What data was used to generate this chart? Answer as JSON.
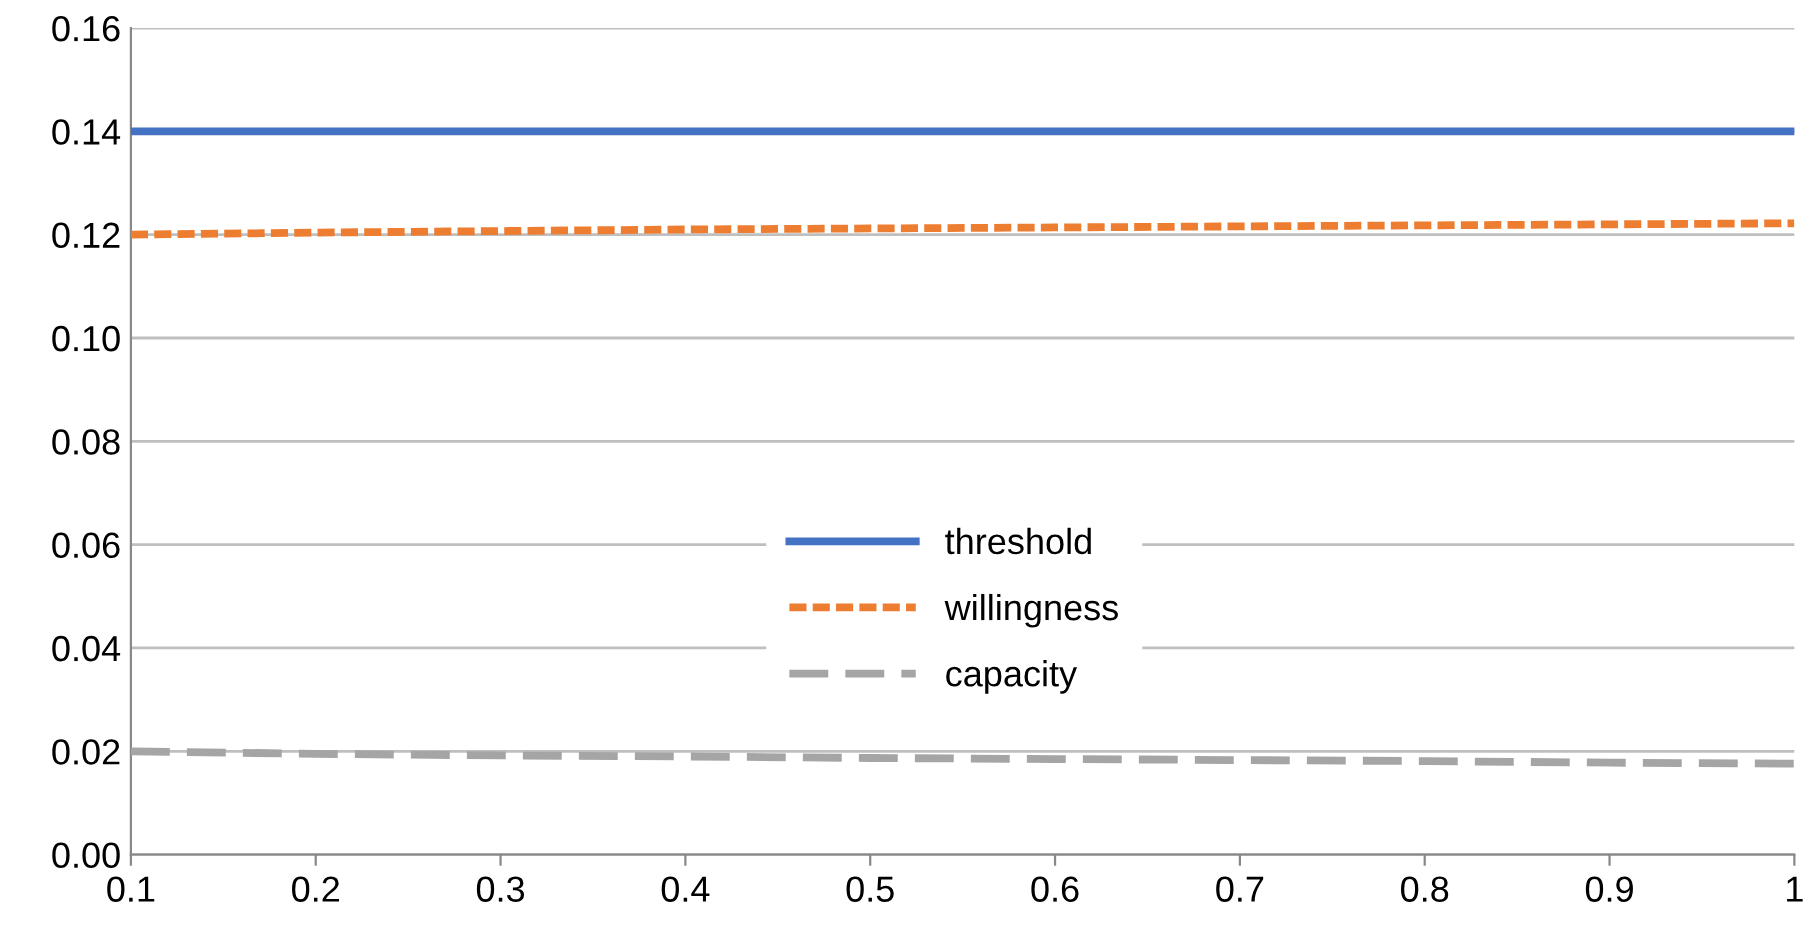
{
  "chart_data": {
    "type": "line",
    "x": [
      0.1,
      0.2,
      0.3,
      0.4,
      0.5,
      0.6,
      0.7,
      0.8,
      0.9,
      1
    ],
    "series": [
      {
        "name": "threshold",
        "color": "#4472c4",
        "line_style": "solid",
        "values": [
          0.14,
          0.14,
          0.14,
          0.14,
          0.14,
          0.14,
          0.14,
          0.14,
          0.14,
          0.14
        ]
      },
      {
        "name": "willingness",
        "color": "#ed7d31",
        "line_style": "dotted",
        "values": [
          0.12,
          0.1204,
          0.1207,
          0.121,
          0.1212,
          0.1214,
          0.1216,
          0.1218,
          0.122,
          0.1222
        ]
      },
      {
        "name": "capacity",
        "color": "#a5a5a5",
        "line_style": "dashed",
        "values": [
          0.02,
          0.0195,
          0.0192,
          0.019,
          0.0187,
          0.0185,
          0.0183,
          0.0181,
          0.0178,
          0.0176
        ]
      }
    ],
    "xlim": [
      0.1,
      1
    ],
    "xticks": [
      0.1,
      0.2,
      0.3,
      0.4,
      0.5,
      0.6,
      0.7,
      0.8,
      0.9,
      1
    ],
    "ylim": [
      0,
      0.16
    ],
    "yticks": [
      {
        "value": 0,
        "label": "0.00"
      },
      {
        "value": 0.02,
        "label": "0.02"
      },
      {
        "value": 0.04,
        "label": "0.04"
      },
      {
        "value": 0.06,
        "label": "0.06"
      },
      {
        "value": 0.08,
        "label": "0.08"
      },
      {
        "value": 0.1,
        "label": "0.10"
      },
      {
        "value": 0.12,
        "label": "0.12"
      },
      {
        "value": 0.14,
        "label": "0.14"
      },
      {
        "value": 0.16,
        "label": "0.16"
      }
    ],
    "grid": "y",
    "legend": "center",
    "marker": "none"
  }
}
